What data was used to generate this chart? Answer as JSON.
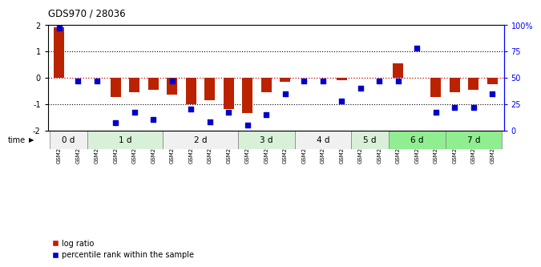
{
  "title": "GDS970 / 28036",
  "samples": [
    "GSM21882",
    "GSM21883",
    "GSM21884",
    "GSM21885",
    "GSM21886",
    "GSM21887",
    "GSM21888",
    "GSM21889",
    "GSM21890",
    "GSM21891",
    "GSM21892",
    "GSM21893",
    "GSM21894",
    "GSM21895",
    "GSM21896",
    "GSM21897",
    "GSM21898",
    "GSM21899",
    "GSM21900",
    "GSM21901",
    "GSM21902",
    "GSM21903",
    "GSM21904",
    "GSM21905"
  ],
  "log_ratio": [
    1.9,
    0.0,
    0.0,
    -0.75,
    -0.55,
    -0.45,
    -0.65,
    -1.0,
    -0.85,
    -1.2,
    -1.35,
    -0.55,
    -0.15,
    0.0,
    0.0,
    -0.1,
    0.0,
    0.0,
    0.55,
    0.0,
    -0.75,
    -0.55,
    -0.45,
    -0.25
  ],
  "percentile_rank": [
    97,
    47,
    47,
    7,
    17,
    10,
    47,
    20,
    8,
    17,
    5,
    15,
    35,
    47,
    47,
    28,
    40,
    47,
    47,
    78,
    17,
    22,
    22,
    35
  ],
  "time_groups": [
    {
      "label": "0 d",
      "start": 0,
      "end": 2
    },
    {
      "label": "1 d",
      "start": 2,
      "end": 6
    },
    {
      "label": "2 d",
      "start": 6,
      "end": 10
    },
    {
      "label": "3 d",
      "start": 10,
      "end": 13
    },
    {
      "label": "4 d",
      "start": 13,
      "end": 16
    },
    {
      "label": "5 d",
      "start": 16,
      "end": 18
    },
    {
      "label": "6 d",
      "start": 18,
      "end": 21
    },
    {
      "label": "7 d",
      "start": 21,
      "end": 24
    }
  ],
  "group_colors": [
    "#f0f0f0",
    "#d8f0d8",
    "#f0f0f0",
    "#d8f0d8",
    "#f0f0f0",
    "#d8f0d8",
    "#90ee90",
    "#90ee90"
  ],
  "ylim": [
    -2,
    2
  ],
  "right_yticks": [
    0,
    25,
    50,
    75,
    100
  ],
  "right_yticklabels": [
    "0",
    "25",
    "50",
    "75",
    "100%"
  ],
  "bar_color": "#bb2200",
  "dot_color": "#0000cc",
  "bg_color": "#ffffff",
  "zero_line_color": "#cc0000"
}
